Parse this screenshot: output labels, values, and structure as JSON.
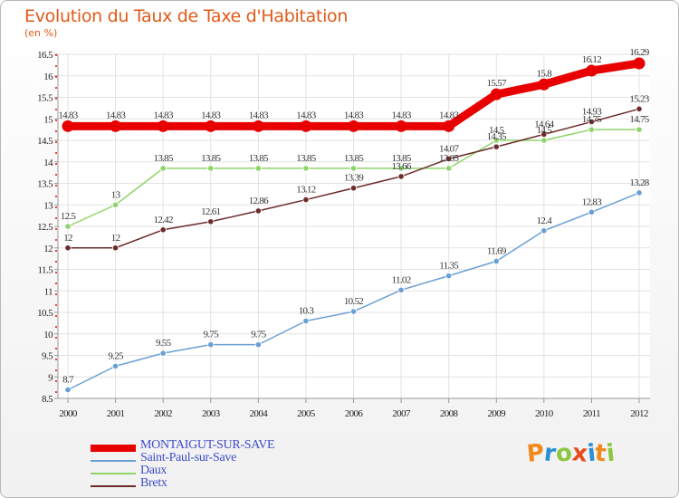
{
  "header": {
    "title": "Evolution du Taux de Taxe d'Habitation",
    "unit": "(en %)"
  },
  "logo": {
    "text": "Proxiti",
    "letters": [
      {
        "ch": "P",
        "color": "#f08a1c"
      },
      {
        "ch": "r",
        "color": "#2b8fd6"
      },
      {
        "ch": "o",
        "color": "#8cc63e"
      },
      {
        "ch": "x",
        "color": "#e84c1c"
      },
      {
        "ch": "i",
        "color": "#2b8fd6"
      },
      {
        "ch": "t",
        "color": "#f08a1c"
      },
      {
        "ch": "i",
        "color": "#8cc63e"
      }
    ]
  },
  "chart_data": {
    "type": "line",
    "title": "Evolution du Taux de Taxe d'Habitation",
    "ylabel": "(en %)",
    "xlabel": "",
    "ylim": [
      8.5,
      16.5
    ],
    "y_ticks": [
      "8.5",
      "9",
      "9.5",
      "10",
      "10.5",
      "11",
      "11.5",
      "12",
      "12.5",
      "13",
      "13.5",
      "14",
      "14.5",
      "15",
      "15.5",
      "16",
      "16.5"
    ],
    "x": [
      "2000",
      "2001",
      "2002",
      "2003",
      "2004",
      "2005",
      "2006",
      "2007",
      "2008",
      "2009",
      "2010",
      "2011",
      "2012"
    ],
    "grid": true,
    "legend": "bottom-left",
    "series": [
      {
        "name": "MONTAIGUT-SUR-SAVE",
        "color": "#e80000",
        "values": [
          14.83,
          14.83,
          14.83,
          14.83,
          14.83,
          14.83,
          14.83,
          14.83,
          14.83,
          15.57,
          15.8,
          16.12,
          16.29
        ],
        "labels": [
          "14.83",
          "14.83",
          "14.83",
          "14.83",
          "14.83",
          "14.83",
          "14.83",
          "14.83",
          "14.83",
          "15.57",
          "15.8",
          "16.12",
          "16.29"
        ]
      },
      {
        "name": "Saint-Paul-sur-Save",
        "color": "#6a9fd4",
        "values": [
          8.7,
          9.25,
          9.55,
          9.75,
          9.75,
          10.3,
          10.52,
          11.02,
          11.35,
          11.69,
          12.4,
          12.83,
          13.28
        ],
        "labels": [
          "8.7",
          "9.25",
          "9.55",
          "9.75",
          "9.75",
          "10.3",
          "10.52",
          "11.02",
          "11.35",
          "11.69",
          "12.4",
          "12.83",
          "13.28"
        ]
      },
      {
        "name": "Daux",
        "color": "#8fd46a",
        "values": [
          12.5,
          13,
          13.85,
          13.85,
          13.85,
          13.85,
          13.85,
          13.85,
          13.85,
          14.5,
          14.5,
          14.75,
          14.75
        ],
        "labels": [
          "12.5",
          "13",
          "13.85",
          "13.85",
          "13.85",
          "13.85",
          "13.85",
          "13.85",
          "13.85",
          "14.5",
          "14.5",
          "14.75",
          "14.75"
        ]
      },
      {
        "name": "Bretx",
        "color": "#6e2b2b",
        "values": [
          12,
          12,
          12.42,
          12.61,
          12.86,
          13.12,
          13.39,
          13.66,
          14.07,
          14.35,
          14.64,
          14.93,
          15.23
        ],
        "labels": [
          "12",
          "12",
          "12.42",
          "12.61",
          "12.86",
          "13.12",
          "13.39",
          "13.66",
          "14.07",
          "14.35",
          "14.64",
          "14.93",
          "15.23"
        ]
      }
    ]
  }
}
